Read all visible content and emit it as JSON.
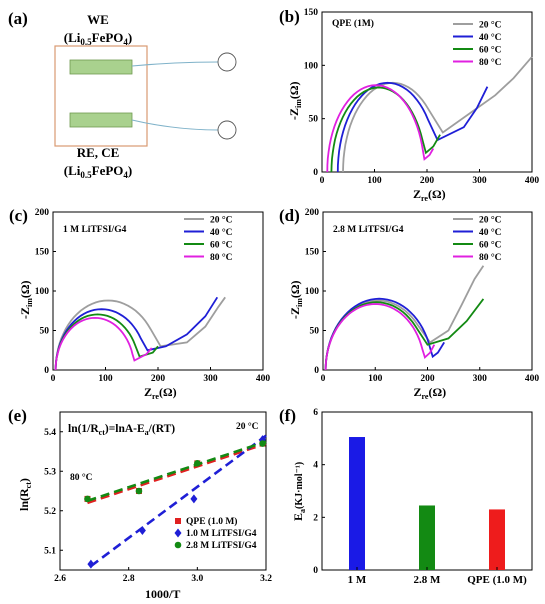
{
  "panels": {
    "a": {
      "label": "(a)",
      "we_title": "WE",
      "we_material": "(Li0.5FePO4)",
      "re_title": "RE, CE",
      "re_material": "(Li0.5FePO4)",
      "colors": {
        "box": "#d99a72",
        "electrode": "#a9d18e",
        "electrode_edge": "#6f9a50",
        "wire": "#7fb2c9"
      }
    },
    "b": {
      "label": "(b)",
      "note": "QPE (1M)"
    },
    "c": {
      "label": "(c)",
      "note": "1 M LiTFSI/G4"
    },
    "d": {
      "label": "(d)",
      "note": "2.8 M LiTFSI/G4"
    },
    "e": {
      "label": "(e)",
      "equation": "ln(1/Rct)=lnA-Ea/(RT)",
      "annot_hot": "20 °C",
      "annot_cold": "80 °C"
    },
    "f": {
      "label": "(f)"
    }
  },
  "temps": [
    "20 °C",
    "40 °C",
    "60 °C",
    "80 °C"
  ],
  "temp_colors": [
    "#9e9e9e",
    "#1f1fd6",
    "#138a13",
    "#e020e0"
  ],
  "chart_data": [
    {
      "id": "b",
      "type": "line",
      "title": "QPE (1M)",
      "xlabel": "Zre(Ω)",
      "ylabel": "-Zim(Ω)",
      "xlim": [
        0,
        400
      ],
      "ylim": [
        0,
        150
      ],
      "xticks": [
        0,
        100,
        200,
        300,
        400
      ],
      "yticks": [
        0,
        50,
        100,
        150
      ],
      "legend": "top-right",
      "series": [
        {
          "name": "20 °C",
          "r0": 40,
          "rct": 190,
          "dip": 37,
          "tail": [
            [
              290,
              58
            ],
            [
              330,
              72
            ],
            [
              365,
              88
            ],
            [
              400,
              108
            ]
          ]
        },
        {
          "name": "40 °C",
          "r0": 30,
          "rct": 190,
          "dip": 30,
          "tail": [
            [
              270,
              42
            ],
            [
              295,
              60
            ],
            [
              315,
              80
            ]
          ]
        },
        {
          "name": "60 °C",
          "r0": 18,
          "rct": 180,
          "dip": 18,
          "tail": [
            [
              212,
              24
            ],
            [
              225,
              35
            ]
          ]
        },
        {
          "name": "80 °C",
          "r0": 10,
          "rct": 185,
          "dip": 12,
          "tail": [
            [
              205,
              16
            ],
            [
              212,
              22
            ]
          ]
        }
      ]
    },
    {
      "id": "c",
      "type": "line",
      "title": "1 M LiTFSI/G4",
      "xlabel": "Zre(Ω)",
      "ylabel": "-Zim(Ω)",
      "xlim": [
        0,
        400
      ],
      "ylim": [
        0,
        200
      ],
      "xticks": [
        0,
        100,
        200,
        300,
        400
      ],
      "yticks": [
        0,
        50,
        100,
        150,
        200
      ],
      "legend": "top-right",
      "series": [
        {
          "name": "20 °C",
          "r0": 5,
          "rct": 200,
          "dip": 30,
          "tail": [
            [
              255,
              35
            ],
            [
              290,
              55
            ],
            [
              315,
              80
            ],
            [
              328,
              92
            ]
          ]
        },
        {
          "name": "40 °C",
          "r0": 5,
          "rct": 175,
          "dip": 25,
          "tail": [
            [
              215,
              30
            ],
            [
              255,
              45
            ],
            [
              290,
              68
            ],
            [
              313,
              92
            ]
          ]
        },
        {
          "name": "60 °C",
          "r0": 5,
          "rct": 160,
          "dip": 17,
          "tail": [
            [
              190,
              22
            ],
            [
              200,
              30
            ]
          ]
        },
        {
          "name": "80 °C",
          "r0": 5,
          "rct": 150,
          "dip": 12,
          "tail": [
            [
              178,
              20
            ],
            [
              188,
              28
            ]
          ]
        }
      ]
    },
    {
      "id": "d",
      "type": "line",
      "title": "2.8 M LiTFSI/G4",
      "xlabel": "Zre(Ω)",
      "ylabel": "-Zim(Ω)",
      "xlim": [
        0,
        400
      ],
      "ylim": [
        0,
        200
      ],
      "xticks": [
        0,
        100,
        200,
        300,
        400
      ],
      "yticks": [
        0,
        50,
        100,
        150,
        200
      ],
      "legend": "top-right",
      "series": [
        {
          "name": "20 °C",
          "r0": 5,
          "rct": 200,
          "dip": 35,
          "tail": [
            [
              240,
              50
            ],
            [
              265,
              82
            ],
            [
              290,
              115
            ],
            [
              307,
              132
            ]
          ]
        },
        {
          "name": "40 °C",
          "r0": 5,
          "rct": 205,
          "dip": 17,
          "tail": [
            [
              220,
              22
            ],
            [
              232,
              35
            ]
          ]
        },
        {
          "name": "60 °C",
          "r0": 5,
          "rct": 195,
          "dip": 32,
          "tail": [
            [
              240,
              40
            ],
            [
              275,
              62
            ],
            [
              307,
              90
            ]
          ]
        },
        {
          "name": "80 °C",
          "r0": 5,
          "rct": 190,
          "dip": 16,
          "tail": [
            [
              205,
              22
            ],
            [
              213,
              32
            ]
          ]
        }
      ]
    },
    {
      "id": "e",
      "type": "scatter",
      "xlabel": "1000/T",
      "ylabel": "ln(Rct)",
      "xlim": [
        2.6,
        3.2
      ],
      "ylim": [
        5.05,
        5.45
      ],
      "xticks": [
        2.6,
        2.8,
        3.0,
        3.2
      ],
      "yticks": [
        5.1,
        5.2,
        5.3,
        5.4
      ],
      "legend": "bottom-right",
      "series": [
        {
          "name": "QPE (1.0 M)",
          "color": "#e02020",
          "marker": "square",
          "x": [
            2.68,
            2.83,
            3.0,
            3.19
          ],
          "y": [
            5.23,
            5.25,
            5.32,
            5.37
          ],
          "fit": [
            [
              2.68,
              5.22
            ],
            [
              3.2,
              5.37
            ]
          ]
        },
        {
          "name": "1.0 M LiTFSI/G4",
          "color": "#1f1fd6",
          "marker": "diamond",
          "x": [
            2.69,
            2.84,
            2.99,
            3.19
          ],
          "y": [
            5.065,
            5.15,
            5.23,
            5.38
          ],
          "fit": [
            [
              2.69,
              5.06
            ],
            [
              3.2,
              5.39
            ]
          ]
        },
        {
          "name": "2.8 M LiTFSI/G4",
          "color": "#138a13",
          "marker": "circle",
          "x": [
            2.68,
            2.83,
            3.0,
            3.19
          ],
          "y": [
            5.23,
            5.25,
            5.32,
            5.37
          ],
          "fit": [
            [
              2.68,
              5.225
            ],
            [
              3.2,
              5.375
            ]
          ]
        }
      ]
    },
    {
      "id": "f",
      "type": "bar",
      "ylabel": "Ea(KJ·mol⁻¹)",
      "ylim": [
        0,
        6
      ],
      "yticks": [
        0,
        2,
        4,
        6
      ],
      "categories": [
        "1 M",
        "2.8 M",
        "QPE (1.0 M)"
      ],
      "values": [
        5.05,
        2.45,
        2.3
      ],
      "colors": [
        "#1a1ae6",
        "#138a13",
        "#ee1c1c"
      ]
    }
  ]
}
